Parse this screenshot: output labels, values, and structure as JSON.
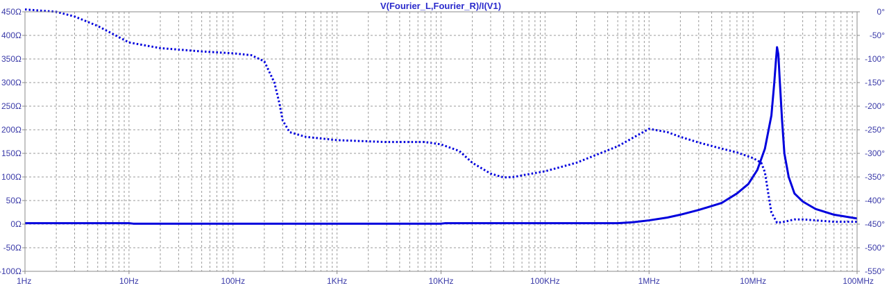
{
  "chart_data": {
    "type": "line",
    "title": "V(Fourier_L,Fourier_R)/I(V1)",
    "x_scale": "log",
    "xlim": [
      1,
      100000000
    ],
    "x_ticks": [
      {
        "value": 1,
        "label": "1Hz"
      },
      {
        "value": 10,
        "label": "10Hz"
      },
      {
        "value": 100,
        "label": "100Hz"
      },
      {
        "value": 1000,
        "label": "1KHz"
      },
      {
        "value": 10000,
        "label": "10KHz"
      },
      {
        "value": 100000,
        "label": "100KHz"
      },
      {
        "value": 1000000,
        "label": "1MHz"
      },
      {
        "value": 10000000,
        "label": "10MHz"
      },
      {
        "value": 100000000,
        "label": "100MHz"
      }
    ],
    "ylim_left": [
      -100,
      450
    ],
    "y_ticks_left": [
      {
        "value": 450,
        "label": "450Ω"
      },
      {
        "value": 400,
        "label": "400Ω"
      },
      {
        "value": 350,
        "label": "350Ω"
      },
      {
        "value": 300,
        "label": "300Ω"
      },
      {
        "value": 250,
        "label": "250Ω"
      },
      {
        "value": 200,
        "label": "200Ω"
      },
      {
        "value": 150,
        "label": "150Ω"
      },
      {
        "value": 100,
        "label": "100Ω"
      },
      {
        "value": 50,
        "label": "50Ω"
      },
      {
        "value": 0,
        "label": "0Ω"
      },
      {
        "value": -50,
        "label": "-50Ω"
      },
      {
        "value": -100,
        "label": "-100Ω"
      }
    ],
    "ylim_right": [
      -550,
      0
    ],
    "y_ticks_right": [
      {
        "value": 0,
        "label": "0°"
      },
      {
        "value": -50,
        "label": "-50°"
      },
      {
        "value": -100,
        "label": "-100°"
      },
      {
        "value": -150,
        "label": "-150°"
      },
      {
        "value": -200,
        "label": "-200°"
      },
      {
        "value": -250,
        "label": "-250°"
      },
      {
        "value": -300,
        "label": "-300°"
      },
      {
        "value": -350,
        "label": "-350°"
      },
      {
        "value": -400,
        "label": "-400°"
      },
      {
        "value": -450,
        "label": "-450°"
      },
      {
        "value": -500,
        "label": "-500°"
      },
      {
        "value": -550,
        "label": "-550°"
      }
    ],
    "grid": true,
    "series": [
      {
        "style": "solid",
        "axis": "left",
        "color": "#0000dd",
        "x": [
          1,
          10,
          11,
          100,
          1000,
          10000,
          11000,
          100000,
          500000,
          700000,
          1000000,
          1500000,
          2000000,
          3000000,
          5000000,
          7000000,
          9000000,
          11000000,
          13000000,
          15000000,
          16000000,
          16500000,
          17000000,
          17500000,
          18000000,
          19000000,
          20000000,
          22000000,
          25000000,
          30000000,
          40000000,
          60000000,
          100000000
        ],
        "y": [
          2,
          2,
          1,
          1,
          1,
          1,
          2,
          2,
          2,
          4,
          8,
          14,
          20,
          30,
          45,
          65,
          85,
          115,
          160,
          230,
          300,
          340,
          375,
          360,
          310,
          220,
          150,
          100,
          65,
          48,
          32,
          20,
          12
        ]
      },
      {
        "style": "dotted",
        "axis": "right",
        "color": "#0000dd",
        "x": [
          1,
          2,
          3,
          5,
          10,
          20,
          50,
          100,
          150,
          200,
          250,
          280,
          300,
          350,
          500,
          1000,
          3000,
          7000,
          10000,
          15000,
          20000,
          30000,
          40000,
          50000,
          70000,
          100000,
          200000,
          500000,
          1000000,
          1500000,
          2000000,
          3000000,
          5000000,
          7000000,
          10000000,
          12000000,
          13000000,
          14000000,
          15000000,
          17000000,
          20000000,
          25000000,
          30000000,
          40000000,
          60000000,
          100000000
        ],
        "y": [
          5,
          0,
          -10,
          -30,
          -65,
          -77,
          -84,
          -88,
          -92,
          -105,
          -150,
          -195,
          -230,
          -255,
          -265,
          -272,
          -276,
          -276,
          -281,
          -295,
          -320,
          -343,
          -351,
          -350,
          -344,
          -338,
          -320,
          -285,
          -248,
          -255,
          -265,
          -277,
          -290,
          -298,
          -310,
          -320,
          -340,
          -385,
          -425,
          -447,
          -445,
          -440,
          -440,
          -442,
          -445,
          -445
        ]
      }
    ]
  }
}
